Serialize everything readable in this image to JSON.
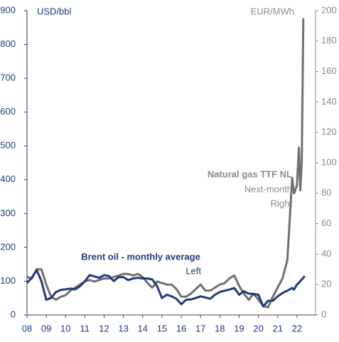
{
  "chart_data": {
    "type": "line",
    "x": [
      2008,
      2008.25,
      2008.5,
      2008.75,
      2009,
      2009.25,
      2009.5,
      2009.75,
      2010,
      2010.25,
      2010.5,
      2010.75,
      2011,
      2011.25,
      2011.5,
      2011.75,
      2012,
      2012.25,
      2012.5,
      2012.75,
      2013,
      2013.25,
      2013.5,
      2013.75,
      2014,
      2014.25,
      2014.5,
      2014.75,
      2015,
      2015.25,
      2015.5,
      2015.75,
      2016,
      2016.25,
      2016.5,
      2016.75,
      2017,
      2017.25,
      2017.5,
      2017.75,
      2018,
      2018.25,
      2018.5,
      2018.75,
      2019,
      2019.25,
      2019.5,
      2019.75,
      2020,
      2020.25,
      2020.5,
      2020.75,
      2021,
      2021.25,
      2021.5,
      2021.75,
      2021.85,
      2022,
      2022.1,
      2022.17,
      2022.25,
      2022.33,
      2022.4
    ],
    "series": [
      {
        "name": "Brent oil - monthly average",
        "note": "Left",
        "color": "#1f3a7a",
        "axis": "y",
        "values": [
          95,
          110,
          133,
          100,
          45,
          50,
          68,
          74,
          76,
          78,
          76,
          85,
          100,
          118,
          114,
          110,
          118,
          115,
          100,
          112,
          112,
          103,
          108,
          110,
          108,
          108,
          105,
          85,
          50,
          60,
          55,
          48,
          32,
          45,
          46,
          50,
          55,
          52,
          48,
          60,
          68,
          72,
          75,
          80,
          60,
          70,
          63,
          62,
          60,
          25,
          42,
          42,
          55,
          65,
          72,
          80,
          75,
          90,
          95,
          100,
          105,
          110,
          115
        ]
      },
      {
        "name": "Natural gas TTF NL",
        "note": [
          "Next-month",
          "Right"
        ],
        "color": "#707070",
        "axis": "y2",
        "values": [
          25,
          24,
          30,
          30,
          20,
          12,
          10,
          12,
          13,
          16,
          18,
          20,
          22,
          23,
          22,
          23,
          24,
          24,
          25,
          26,
          27,
          27,
          26,
          27,
          25,
          21,
          18,
          22,
          21,
          20,
          20,
          17,
          12,
          12,
          14,
          17,
          20,
          16,
          16,
          18,
          20,
          21,
          24,
          26,
          19,
          14,
          10,
          14,
          10,
          6,
          5,
          12,
          18,
          24,
          36,
          90,
          80,
          85,
          110,
          82,
          100,
          195,
          null
        ]
      }
    ],
    "y_unit": "USD/bbl",
    "y2_unit": "EUR/MWh",
    "xlim": [
      2008,
      2022.5
    ],
    "xticks": [
      {
        "value": 2008,
        "label": "08"
      },
      {
        "value": 2009,
        "label": "09"
      },
      {
        "value": 2010,
        "label": "10"
      },
      {
        "value": 2011,
        "label": "11"
      },
      {
        "value": 2012,
        "label": "12"
      },
      {
        "value": 2013,
        "label": "13"
      },
      {
        "value": 2014,
        "label": "14"
      },
      {
        "value": 2015,
        "label": "15"
      },
      {
        "value": 2016,
        "label": "16"
      },
      {
        "value": 2017,
        "label": "17"
      },
      {
        "value": 2018,
        "label": "18"
      },
      {
        "value": 2019,
        "label": "19"
      },
      {
        "value": 2020,
        "label": "20"
      },
      {
        "value": 2021,
        "label": "21"
      },
      {
        "value": 2022,
        "label": "22"
      }
    ],
    "ylim": [
      0,
      900
    ],
    "yticks": [
      0,
      100,
      200,
      300,
      400,
      500,
      600,
      700,
      800,
      900
    ],
    "y2lim": [
      0,
      200
    ],
    "y2ticks": [
      0,
      20,
      40,
      60,
      80,
      100,
      120,
      140,
      160,
      180,
      200
    ]
  }
}
